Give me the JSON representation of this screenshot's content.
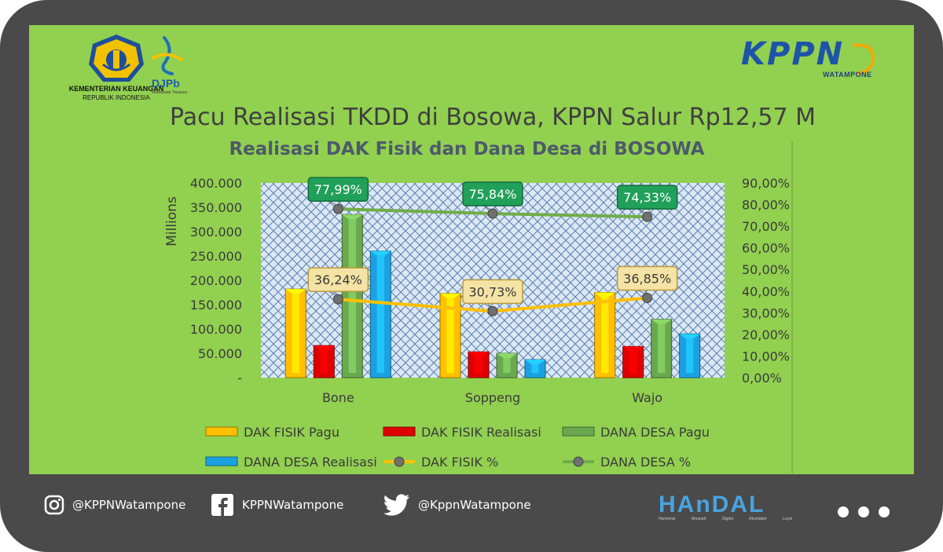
{
  "header": {
    "ministry_line1": "KEMENTERIAN KEUANGAN",
    "ministry_line2": "REPUBLIK INDONESIA",
    "djpb": "DJPb",
    "djpb_sub": "Indonesian Treasury",
    "kppn": "KPPN",
    "kppn_sub": "WATAMPONE",
    "headline": "Pacu Realisasi TKDD di Bosowa, KPPN Salur Rp12,57 M"
  },
  "chart_data": {
    "type": "bar",
    "title": "Realisasi DAK Fisik dan Dana Desa di BOSOWA",
    "ylabel": "Millions",
    "categories": [
      "Bone",
      "Soppeng",
      "Wajo"
    ],
    "ylim": [
      0,
      400000
    ],
    "y_ticks": [
      "-",
      "50.000",
      "100.000",
      "150.000",
      "200.000",
      "250.000",
      "300.000",
      "350.000",
      "400.000"
    ],
    "y2lim": [
      0,
      90
    ],
    "y2_ticks": [
      "0,00%",
      "10,00%",
      "20,00%",
      "30,00%",
      "40,00%",
      "50,00%",
      "60,00%",
      "70,00%",
      "80,00%",
      "90,00%"
    ],
    "series": [
      {
        "name": "DAK FISIK Pagu",
        "type": "bar",
        "color": "#ffc000",
        "values": [
          182000,
          173000,
          175000
        ]
      },
      {
        "name": "DAK FISIK Realisasi",
        "type": "bar",
        "color": "#e00000",
        "values": [
          66000,
          53000,
          64000
        ]
      },
      {
        "name": "DANA DESA Pagu",
        "type": "bar",
        "color": "#6aa84f",
        "values": [
          335000,
          50000,
          120000
        ]
      },
      {
        "name": "DANA DESA Realisasi",
        "type": "bar",
        "color": "#1ba1e2",
        "values": [
          260000,
          37000,
          90000
        ]
      },
      {
        "name": "DAK FISIK %",
        "type": "line",
        "axis": "right",
        "color": "#ffc000",
        "values": [
          36.24,
          30.73,
          36.85
        ],
        "labels": [
          "36,24%",
          "30,73%",
          "36,85%"
        ]
      },
      {
        "name": "DANA DESA %",
        "type": "line",
        "axis": "right",
        "color": "#70ad47",
        "values": [
          77.99,
          75.84,
          74.33
        ],
        "labels": [
          "77,99%",
          "75,84%",
          "74,33%"
        ]
      }
    ],
    "legend": "bottom"
  },
  "footer": {
    "instagram": "@KPPNWatampone",
    "facebook": "KPPNWatampone",
    "twitter": "@KppnWatampone",
    "handal": "HAnDAL",
    "handal_words": [
      "Harmonis",
      "Amanah",
      "Digital",
      "Akuntabel",
      "Loyal"
    ]
  },
  "colors": {
    "frame": "#4a4a4a",
    "panel": "#92d050",
    "title": "#3f3f3f",
    "kppn": "#1e54a8"
  }
}
